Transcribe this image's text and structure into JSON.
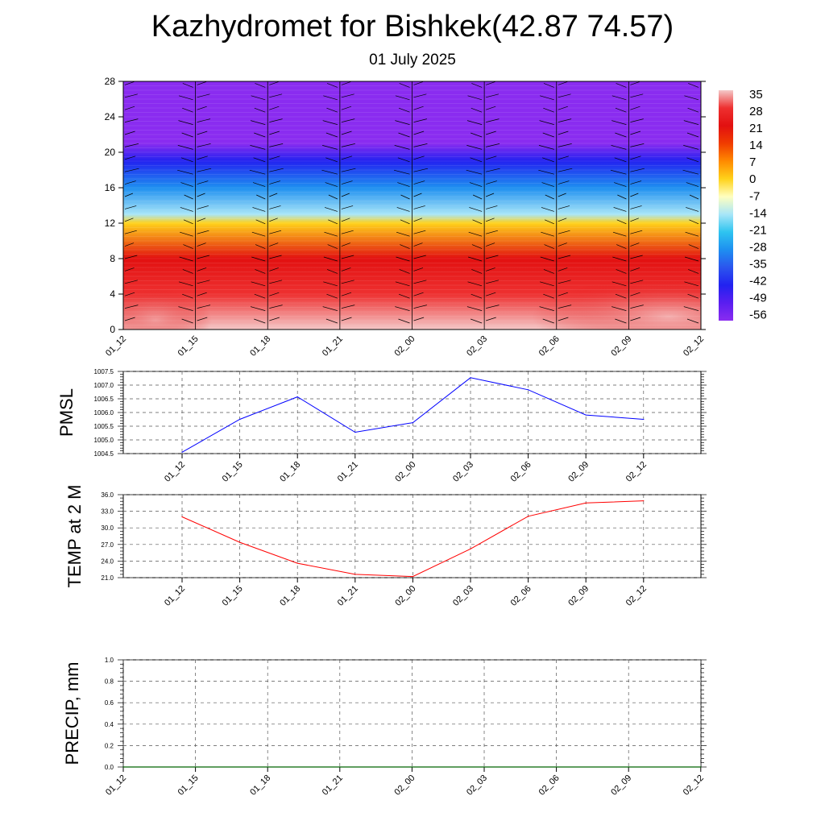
{
  "title": "Kazhydromet for Bishkek(42.87 74.57)",
  "subtitle": "01 July 2025",
  "chart_data": [
    {
      "type": "heatmap",
      "name": "temperature-height-section",
      "x_ticks": [
        "01_12",
        "01_15",
        "01_18",
        "01_21",
        "02_00",
        "02_03",
        "02_06",
        "02_09",
        "02_12"
      ],
      "y_ticks": [
        "0",
        "4",
        "8",
        "12",
        "16",
        "20",
        "24",
        "28"
      ],
      "ylim": [
        0,
        28
      ],
      "colorbar_labels": [
        "35",
        "28",
        "21",
        "14",
        "7",
        "0",
        "-7",
        "-14",
        "-21",
        "-28",
        "-35",
        "-42",
        "-49",
        "-56"
      ],
      "colorbar_colors": [
        "#f4c8c8",
        "#ee3030",
        "#e21010",
        "#f03c00",
        "#ff8a00",
        "#ffd21a",
        "#ffffc0",
        "#a8e6f8",
        "#2ec4f0",
        "#1e8ff0",
        "#2b55ee",
        "#2222f0",
        "#5a1ef0",
        "#8a2cf0"
      ],
      "level_profile": [
        {
          "level": 0,
          "value": 32
        },
        {
          "level": 4,
          "value": 27
        },
        {
          "level": 8,
          "value": 18
        },
        {
          "level": 12,
          "value": 0
        },
        {
          "level": 13,
          "value": -14
        },
        {
          "level": 16,
          "value": -28
        },
        {
          "level": 19,
          "value": -42
        },
        {
          "level": 21,
          "value": -56
        },
        {
          "level": 28,
          "value": -58
        }
      ],
      "grid": false
    },
    {
      "type": "line",
      "name": "pmsl",
      "ylabel": "PMSL",
      "y_ticks": [
        "1004.5",
        "1005.0",
        "1005.5",
        "1006.0",
        "1006.5",
        "1007.0",
        "1007.5"
      ],
      "ylim": [
        1004.5,
        1007.5
      ],
      "categories": [
        "01_12",
        "01_15",
        "01_18",
        "01_21",
        "02_00",
        "02_03",
        "02_06",
        "02_09",
        "02_12"
      ],
      "values": [
        1004.55,
        1005.75,
        1006.57,
        1005.28,
        1005.63,
        1007.27,
        1006.83,
        1005.91,
        1005.75
      ],
      "color": "#0000ff",
      "grid": true
    },
    {
      "type": "line",
      "name": "temp-2m",
      "ylabel": "TEMP at 2 M",
      "y_ticks": [
        "21.0",
        "24.0",
        "27.0",
        "30.0",
        "33.0",
        "36.0"
      ],
      "ylim": [
        21,
        36
      ],
      "categories": [
        "01_12",
        "01_15",
        "01_18",
        "01_21",
        "02_00",
        "02_03",
        "02_06",
        "02_09",
        "02_12"
      ],
      "values": [
        32.0,
        27.4,
        23.6,
        21.6,
        21.2,
        26.2,
        32.1,
        34.5,
        34.9
      ],
      "color": "#ff0000",
      "grid": true
    },
    {
      "type": "line",
      "name": "precip",
      "ylabel": "PRECIP, mm",
      "y_ticks": [
        "0.0",
        "0.2",
        "0.4",
        "0.6",
        "0.8",
        "1.0"
      ],
      "ylim": [
        0,
        1
      ],
      "x_ticks": [
        "01_12",
        "01_15",
        "01_18",
        "01_21",
        "02_00",
        "02_03",
        "02_06",
        "02_09",
        "02_12"
      ],
      "values": [
        0,
        0,
        0,
        0,
        0,
        0,
        0,
        0,
        0
      ],
      "color": "#006400",
      "grid": true
    }
  ]
}
